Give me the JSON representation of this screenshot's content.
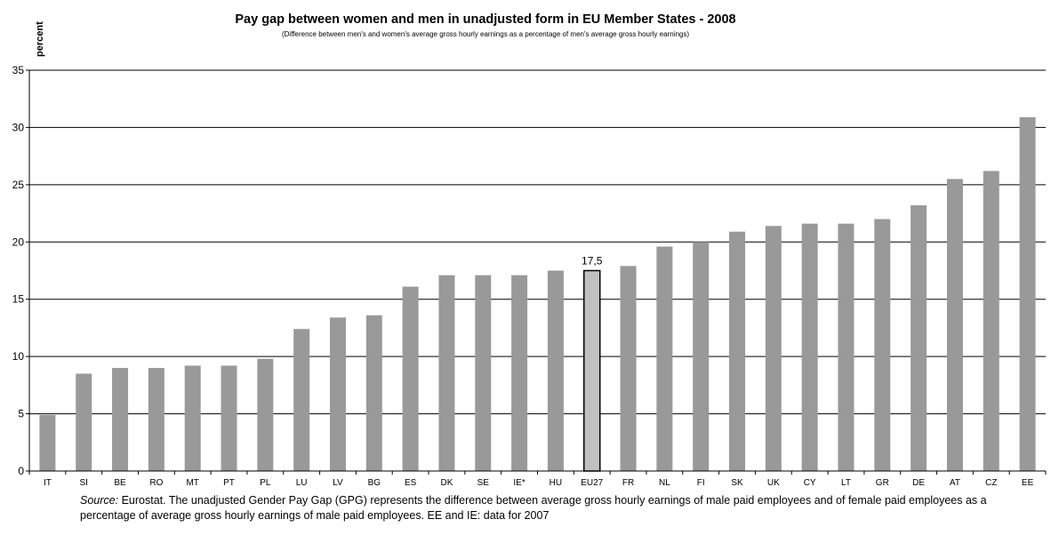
{
  "chart_data": {
    "type": "bar",
    "title": "Pay gap between women and men in unadjusted form in EU Member States - 2008",
    "subtitle": "(Difference between men's and women's average gross hourly earnings as a percentage of men's average gross hourly earnings)",
    "ylabel": "percent",
    "xlabel": "",
    "ylim": [
      0,
      35
    ],
    "yticks": [
      0,
      5,
      10,
      15,
      20,
      25,
      30,
      35
    ],
    "grid": true,
    "bar_color": "#999999",
    "highlight_color": "#c0c0c0",
    "highlight_category": "EU27",
    "highlight_label": "17,5",
    "categories": [
      "IT",
      "SI",
      "BE",
      "RO",
      "MT",
      "PT",
      "PL",
      "LU",
      "LV",
      "BG",
      "ES",
      "DK",
      "SE",
      "IE*",
      "HU",
      "EU27",
      "FR",
      "NL",
      "FI",
      "SK",
      "UK",
      "CY",
      "LT",
      "GR",
      "DE",
      "AT",
      "CZ",
      "EE"
    ],
    "values": [
      4.9,
      8.5,
      9.0,
      9.0,
      9.2,
      9.2,
      9.8,
      12.4,
      13.4,
      13.6,
      16.1,
      17.1,
      17.1,
      17.1,
      17.5,
      17.5,
      17.9,
      19.6,
      20.0,
      20.9,
      21.4,
      21.6,
      21.6,
      22.0,
      23.2,
      25.5,
      26.2,
      30.9
    ]
  },
  "note": {
    "source_label": "Source:",
    "text": "Eurostat. The unadjusted Gender Pay Gap (GPG) represents the difference between average gross hourly earnings of male paid employees and of female paid employees as a percentage of average gross hourly earnings of male paid employees. EE and IE: data for 2007"
  }
}
